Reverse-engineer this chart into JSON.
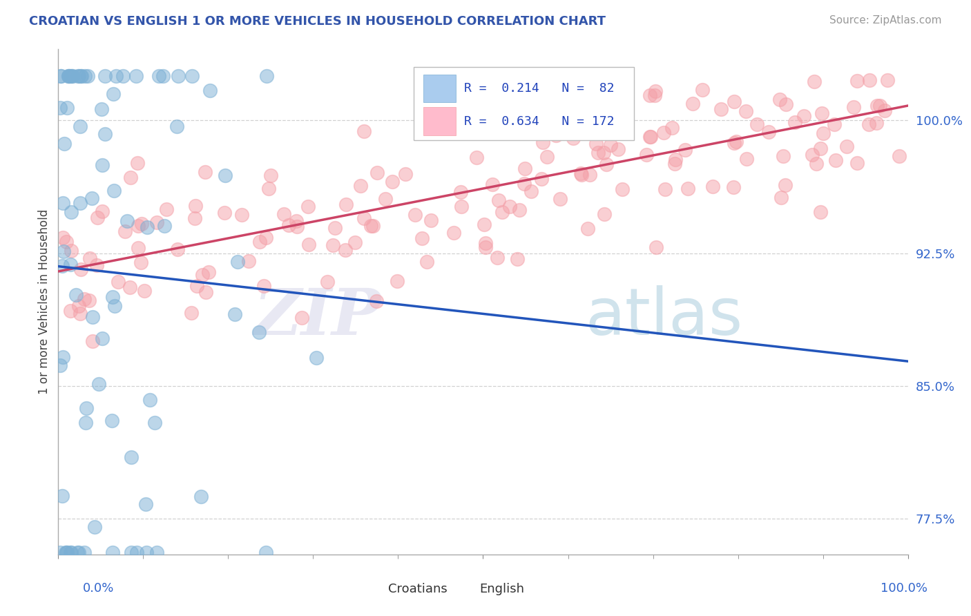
{
  "title": "CROATIAN VS ENGLISH 1 OR MORE VEHICLES IN HOUSEHOLD CORRELATION CHART",
  "source_text": "Source: ZipAtlas.com",
  "ylabel": "1 or more Vehicles in Household",
  "xlim": [
    0.0,
    1.0
  ],
  "ylim": [
    0.755,
    1.04
  ],
  "yticks": [
    0.775,
    0.85,
    0.925,
    1.0
  ],
  "ytick_labels": [
    "77.5%",
    "85.0%",
    "92.5%",
    "100.0%"
  ],
  "xtick_labels": [
    "0.0%",
    "100.0%"
  ],
  "blue_color": "#7BAFD4",
  "pink_color": "#F4A0A8",
  "line_blue": "#2255BB",
  "line_pink": "#CC4466",
  "title_color": "#3355AA",
  "watermark_zip": "ZIP",
  "watermark_atlas": "atlas",
  "seed": 42
}
